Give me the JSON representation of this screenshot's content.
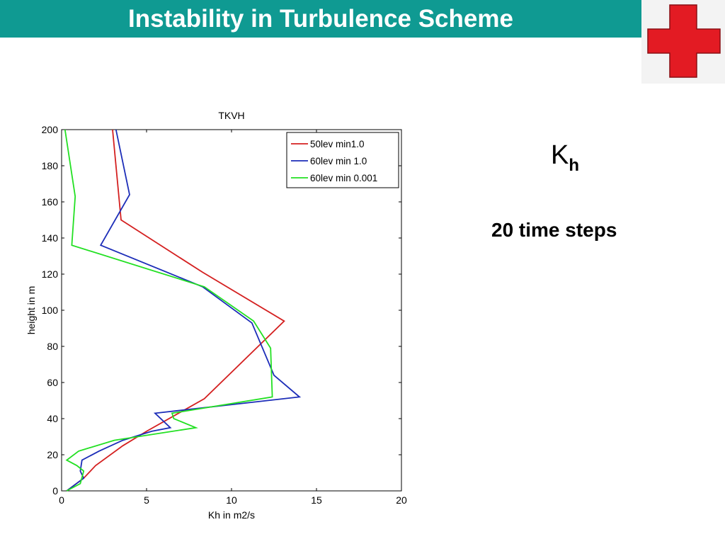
{
  "slide": {
    "title": "Instability in Turbulence Scheme",
    "title_bar_color": "#0f9a92",
    "logo_icon": "red-cross-icon",
    "logo_color": "#e31b23",
    "kh_main": "K",
    "kh_sub": "h",
    "steps_text": "20 time steps"
  },
  "chart_data": {
    "type": "line",
    "title": "TKVH",
    "xlabel": "Kh in m2/s",
    "ylabel": "height in m",
    "xlim": [
      0,
      20
    ],
    "ylim": [
      0,
      200
    ],
    "xticks": [
      0,
      5,
      10,
      15,
      20
    ],
    "yticks": [
      0,
      20,
      40,
      60,
      80,
      100,
      120,
      140,
      160,
      180,
      200
    ],
    "grid": false,
    "legend_position": "top-right",
    "series": [
      {
        "name": "50lev min1.0",
        "color": "#d42020",
        "points": [
          [
            0.3,
            0
          ],
          [
            1.3,
            7
          ],
          [
            2.0,
            14
          ],
          [
            3.6,
            25
          ],
          [
            5.0,
            33
          ],
          [
            8.4,
            51
          ],
          [
            13.1,
            94
          ],
          [
            8.3,
            121
          ],
          [
            3.5,
            150
          ],
          [
            3.0,
            200
          ]
        ]
      },
      {
        "name": "60lev min 1.0",
        "color": "#1c2db8",
        "points": [
          [
            0.3,
            0
          ],
          [
            1.3,
            7
          ],
          [
            1.1,
            11
          ],
          [
            1.2,
            17
          ],
          [
            2.2,
            22
          ],
          [
            3.6,
            28
          ],
          [
            5.3,
            33
          ],
          [
            6.4,
            35
          ],
          [
            5.5,
            43
          ],
          [
            14.0,
            52
          ],
          [
            12.5,
            64
          ],
          [
            11.2,
            93
          ],
          [
            8.3,
            113
          ],
          [
            2.3,
            136
          ],
          [
            4.0,
            164
          ],
          [
            3.2,
            200
          ]
        ]
      },
      {
        "name": "60lev min 0.001",
        "color": "#22e022",
        "points": [
          [
            0.3,
            0
          ],
          [
            1.1,
            4
          ],
          [
            1.3,
            11
          ],
          [
            0.9,
            14
          ],
          [
            0.3,
            17
          ],
          [
            1.0,
            22
          ],
          [
            3.1,
            28
          ],
          [
            7.9,
            35
          ],
          [
            6.6,
            40
          ],
          [
            6.5,
            43
          ],
          [
            12.4,
            52
          ],
          [
            12.3,
            79
          ],
          [
            11.3,
            94
          ],
          [
            8.4,
            113
          ],
          [
            0.6,
            136
          ],
          [
            0.8,
            163
          ],
          [
            0.2,
            200
          ]
        ]
      }
    ]
  }
}
